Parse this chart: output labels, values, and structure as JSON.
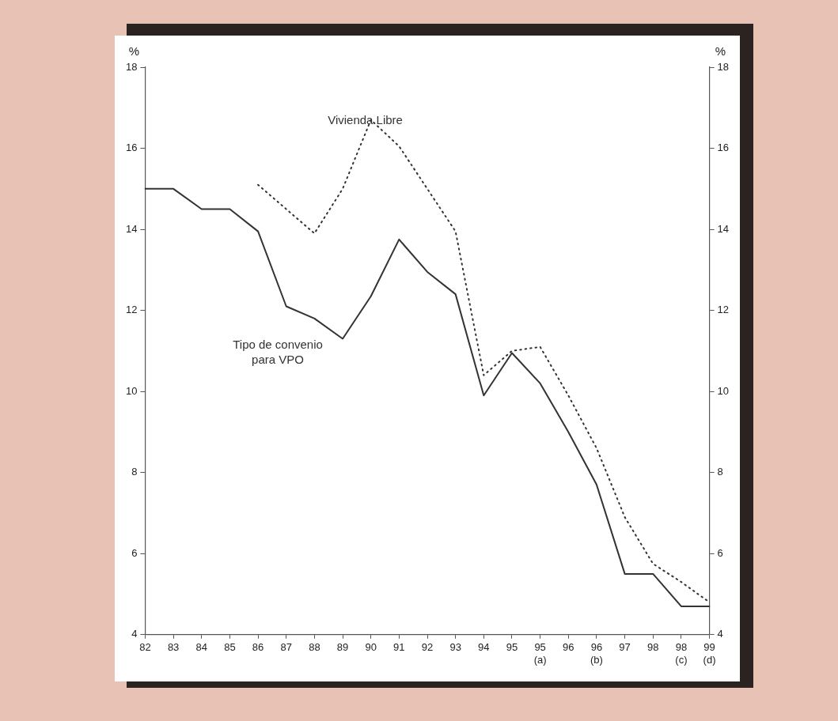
{
  "chart_data": {
    "type": "line",
    "categories": [
      "82",
      "83",
      "84",
      "85",
      "86",
      "87",
      "88",
      "89",
      "90",
      "91",
      "92",
      "93",
      "94",
      "95",
      "95 (a)",
      "96",
      "96 (b)",
      "97",
      "98",
      "98 (c)",
      "99 (d)"
    ],
    "series": [
      {
        "name": "Vivienda Libre",
        "color": "#333333",
        "line_style": "dotted",
        "values": [
          null,
          null,
          null,
          null,
          15.1,
          14.5,
          13.9,
          15.0,
          16.7,
          16.05,
          15.0,
          13.95,
          10.4,
          11.0,
          11.1,
          9.9,
          8.6,
          6.9,
          5.75,
          5.3,
          4.8
        ]
      },
      {
        "name": "Tipo de convenio para VPO",
        "color": "#333333",
        "line_style": "solid",
        "values": [
          15.0,
          15.0,
          14.5,
          14.5,
          13.95,
          12.1,
          11.8,
          11.3,
          12.35,
          13.75,
          12.95,
          12.4,
          9.9,
          10.95,
          10.2,
          9.0,
          7.7,
          5.5,
          5.5,
          4.7,
          4.7
        ]
      }
    ],
    "ylabel": "%",
    "y2label": "%",
    "ylim": [
      4,
      18
    ],
    "yticks": [
      4,
      6,
      8,
      10,
      12,
      14,
      16,
      18
    ],
    "y2lim": [
      4,
      18
    ],
    "y2ticks": [
      4,
      6,
      8,
      10,
      12,
      14,
      16,
      18
    ],
    "grid": false,
    "legend": false,
    "marker": "none"
  }
}
